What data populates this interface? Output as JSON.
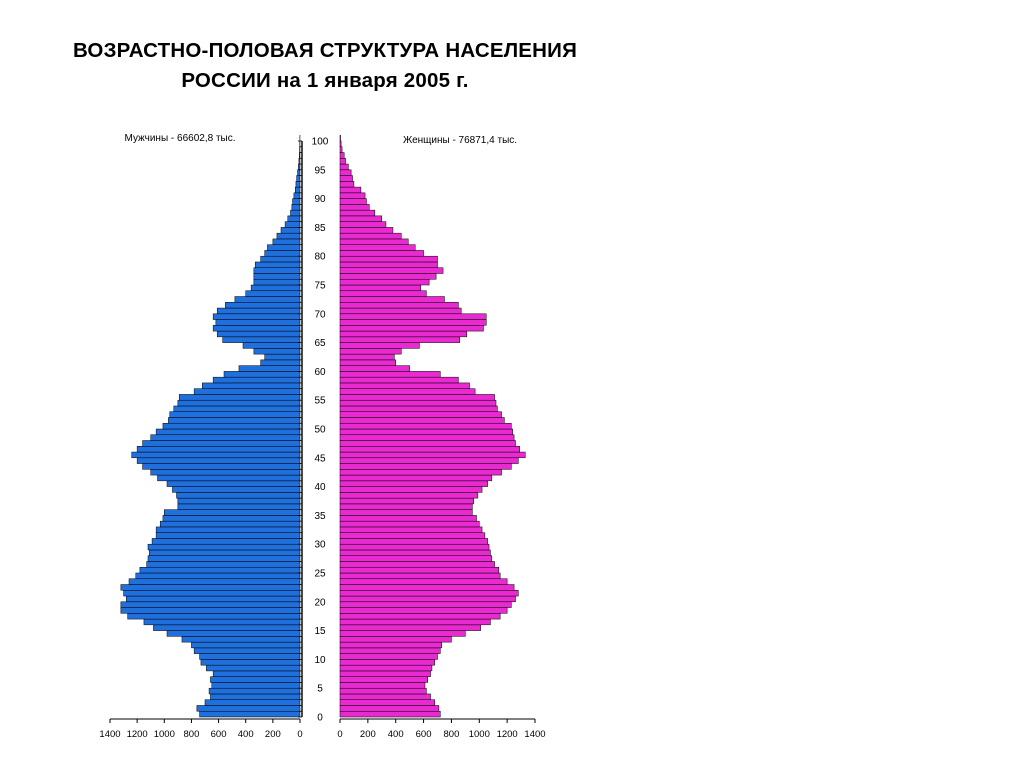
{
  "title": {
    "line1": "ВОЗРАСТНО-ПОЛОВАЯ СТРУКТУРА НАСЕЛЕНИЯ",
    "line2": "РОССИИ на 1 января 2005 г."
  },
  "colors": {
    "male": "#1f6fdc",
    "female": "#e82ad0",
    "outline": "#000000"
  },
  "chart_data": {
    "type": "bar",
    "orientation": "horizontal-population-pyramid",
    "age_axis": {
      "min": 0,
      "max": 100,
      "ticks": [
        "0",
        "5",
        "10",
        "15",
        "20",
        "25",
        "30",
        "35",
        "40",
        "45",
        "50",
        "55",
        "60",
        "65",
        "70",
        "75",
        "80",
        "85",
        "90",
        "95",
        "100"
      ]
    },
    "value_axis": {
      "max": 1400,
      "male_ticks": [
        "1400",
        "1200",
        "1000",
        "800",
        "600",
        "400",
        "200",
        "0"
      ],
      "female_ticks": [
        "0",
        "200",
        "400",
        "600",
        "800",
        "1000",
        "1200",
        "1400"
      ]
    },
    "ages": [
      0,
      1,
      2,
      3,
      4,
      5,
      6,
      7,
      8,
      9,
      10,
      11,
      12,
      13,
      14,
      15,
      16,
      17,
      18,
      19,
      20,
      21,
      22,
      23,
      24,
      25,
      26,
      27,
      28,
      29,
      30,
      31,
      32,
      33,
      34,
      35,
      36,
      37,
      38,
      39,
      40,
      41,
      42,
      43,
      44,
      45,
      46,
      47,
      48,
      49,
      50,
      51,
      52,
      53,
      54,
      55,
      56,
      57,
      58,
      59,
      60,
      61,
      62,
      63,
      64,
      65,
      66,
      67,
      68,
      69,
      70,
      71,
      72,
      73,
      74,
      75,
      76,
      77,
      78,
      79,
      80,
      81,
      82,
      83,
      84,
      85,
      86,
      87,
      88,
      89,
      90,
      91,
      92,
      93,
      94,
      95,
      96,
      97,
      98,
      99,
      100
    ],
    "series": [
      {
        "name": "Мужчины - 66602,8 тыс.",
        "values": [
          740,
          760,
          700,
          660,
          670,
          650,
          660,
          640,
          690,
          730,
          740,
          780,
          800,
          870,
          980,
          1080,
          1150,
          1270,
          1320,
          1320,
          1280,
          1300,
          1320,
          1260,
          1210,
          1180,
          1130,
          1120,
          1110,
          1120,
          1090,
          1060,
          1060,
          1030,
          1010,
          1000,
          900,
          900,
          910,
          940,
          980,
          1050,
          1100,
          1160,
          1200,
          1240,
          1200,
          1160,
          1100,
          1060,
          1010,
          970,
          960,
          930,
          900,
          890,
          780,
          720,
          640,
          560,
          450,
          290,
          260,
          340,
          420,
          570,
          610,
          640,
          620,
          640,
          610,
          550,
          480,
          400,
          360,
          340,
          340,
          340,
          330,
          290,
          260,
          240,
          200,
          170,
          140,
          110,
          90,
          70,
          60,
          55,
          45,
          35,
          30,
          25,
          18,
          12,
          8,
          5,
          3,
          2,
          1
        ]
      },
      {
        "name": "Женщины - 76871,4 тыс.",
        "values": [
          720,
          710,
          680,
          650,
          620,
          610,
          630,
          650,
          660,
          680,
          700,
          720,
          730,
          800,
          900,
          1010,
          1080,
          1150,
          1200,
          1230,
          1260,
          1280,
          1250,
          1200,
          1150,
          1140,
          1110,
          1090,
          1080,
          1070,
          1060,
          1040,
          1020,
          1000,
          980,
          950,
          950,
          960,
          990,
          1020,
          1060,
          1090,
          1160,
          1230,
          1280,
          1330,
          1290,
          1260,
          1250,
          1240,
          1230,
          1180,
          1160,
          1130,
          1120,
          1110,
          970,
          930,
          850,
          720,
          500,
          400,
          390,
          440,
          570,
          860,
          910,
          1030,
          1050,
          1050,
          870,
          850,
          750,
          620,
          580,
          640,
          690,
          740,
          700,
          700,
          600,
          540,
          490,
          440,
          380,
          330,
          300,
          250,
          210,
          190,
          180,
          150,
          100,
          90,
          80,
          60,
          40,
          30,
          15,
          8,
          4
        ]
      }
    ]
  }
}
